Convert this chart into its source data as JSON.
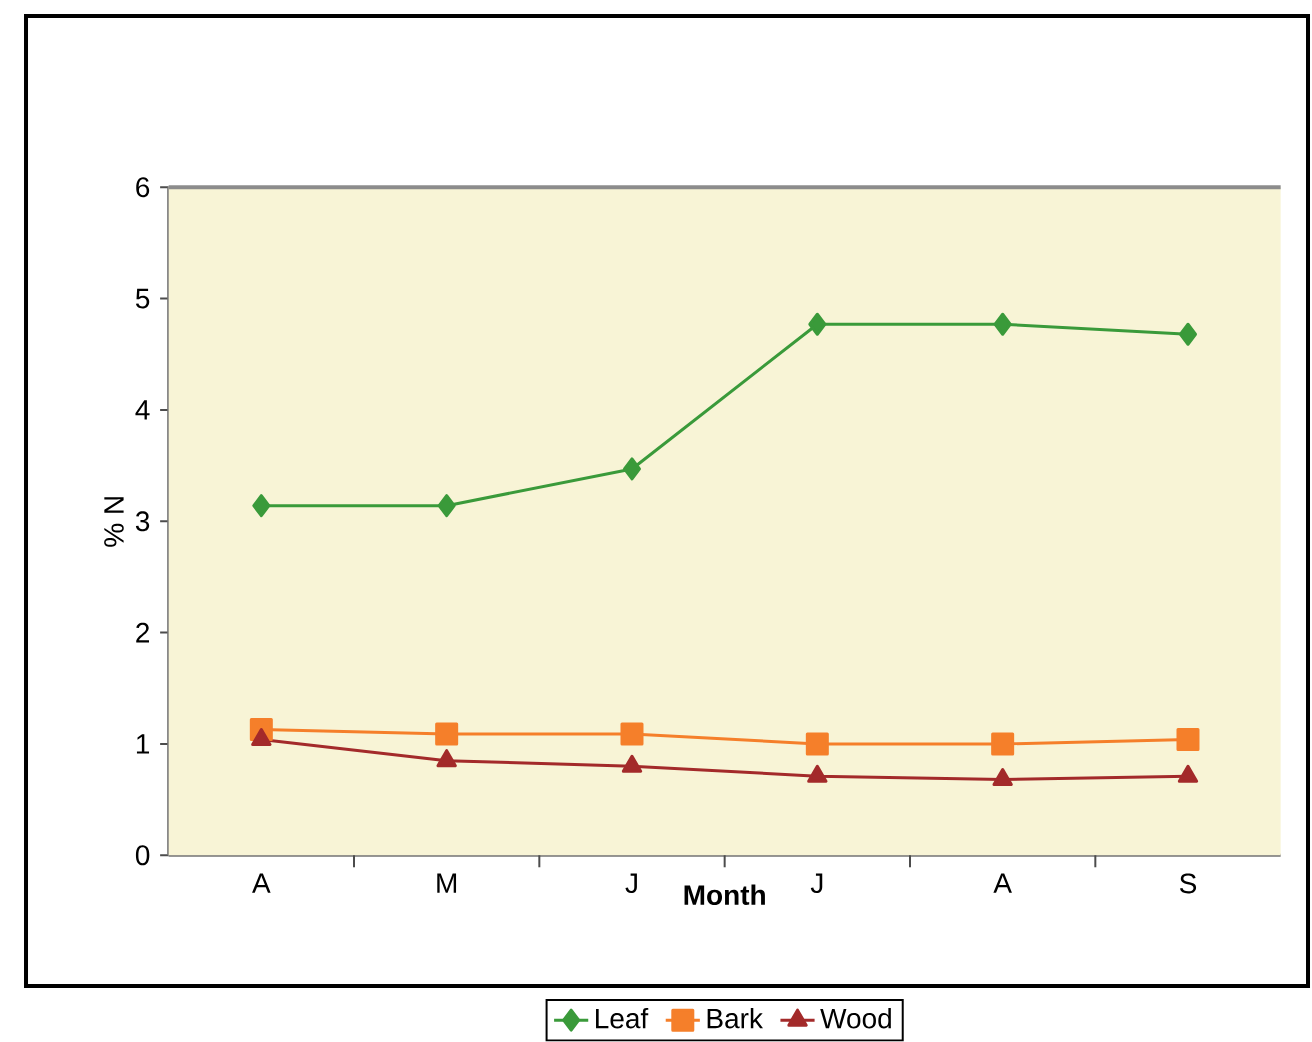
{
  "chart_data": {
    "type": "line",
    "xlabel": "Month",
    "ylabel": "% N",
    "categories": [
      "A",
      "M",
      "J",
      "J",
      "A",
      "S"
    ],
    "ylim": [
      0,
      6
    ],
    "yticks": [
      0,
      1,
      2,
      3,
      4,
      5,
      6
    ],
    "legend": "bottom",
    "series": [
      {
        "name": "Leaf",
        "color": "#3a9a3a",
        "marker": "diamond",
        "values": [
          3.14,
          3.14,
          3.47,
          4.77,
          4.77,
          4.68
        ]
      },
      {
        "name": "Bark",
        "color": "#f57f2a",
        "marker": "square",
        "values": [
          1.13,
          1.09,
          1.09,
          1.0,
          1.0,
          1.04
        ]
      },
      {
        "name": "Wood",
        "color": "#a32a2a",
        "marker": "triangle",
        "values": [
          1.04,
          0.85,
          0.8,
          0.71,
          0.68,
          0.71
        ]
      }
    ]
  }
}
